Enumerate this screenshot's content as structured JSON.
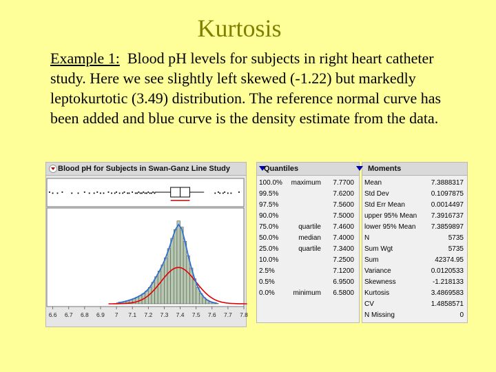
{
  "slide": {
    "title": "Kurtosis",
    "lead": "Example 1:",
    "text": "Blood pH levels for subjects in right heart catheter study. Here we see slightly left skewed (-1.22) but markedly leptokurtotic (3.49) distribution. The reference normal curve has been added and blue curve is the density estimate from the data."
  },
  "plot_panel": {
    "title": "Blood pH for Subjects in Swan-Ganz Line Study",
    "x_ticks": [
      "6.6",
      "6.7",
      "6.8",
      "6.9",
      "7",
      "7.1",
      "7.2",
      "7.3",
      "7.4",
      "7.5",
      "7.6",
      "7.7",
      "7.8"
    ]
  },
  "quantiles": {
    "title": "Quantiles",
    "rows": [
      {
        "pct": "100.0%",
        "label": "maximum",
        "value": "7.7700"
      },
      {
        "pct": "99.5%",
        "label": "",
        "value": "7.6200"
      },
      {
        "pct": "97.5%",
        "label": "",
        "value": "7.5600"
      },
      {
        "pct": "90.0%",
        "label": "",
        "value": "7.5000"
      },
      {
        "pct": "75.0%",
        "label": "quartile",
        "value": "7.4600"
      },
      {
        "pct": "50.0%",
        "label": "median",
        "value": "7.4000"
      },
      {
        "pct": "25.0%",
        "label": "quartile",
        "value": "7.3400"
      },
      {
        "pct": "10.0%",
        "label": "",
        "value": "7.2500"
      },
      {
        "pct": "2.5%",
        "label": "",
        "value": "7.1200"
      },
      {
        "pct": "0.5%",
        "label": "",
        "value": "6.9500"
      },
      {
        "pct": "0.0%",
        "label": "minimum",
        "value": "6.5800"
      }
    ]
  },
  "moments": {
    "title": "Moments",
    "rows": [
      {
        "label": "Mean",
        "value": "7.3888317"
      },
      {
        "label": "Std Dev",
        "value": "0.1097875"
      },
      {
        "label": "Std Err Mean",
        "value": "0.0014497"
      },
      {
        "label": "upper 95% Mean",
        "value": "7.3916737"
      },
      {
        "label": "lower 95% Mean",
        "value": "7.3859897"
      },
      {
        "label": "N",
        "value": "5735"
      },
      {
        "label": "Sum Wgt",
        "value": "5735"
      },
      {
        "label": "Sum",
        "value": "42374.95"
      },
      {
        "label": "Variance",
        "value": "0.0120533"
      },
      {
        "label": "Skewness",
        "value": "-1.218133"
      },
      {
        "label": "Kurtosis",
        "value": "3.4869583"
      },
      {
        "label": "CV",
        "value": "1.4858571"
      },
      {
        "label": "N Missing",
        "value": "0"
      }
    ]
  },
  "chart_data": {
    "type": "bar",
    "xlim": [
      6.58,
      7.8
    ],
    "bin_width": 0.02,
    "bins_x": [
      7.0,
      7.02,
      7.04,
      7.06,
      7.08,
      7.1,
      7.12,
      7.14,
      7.16,
      7.18,
      7.2,
      7.22,
      7.24,
      7.26,
      7.28,
      7.3,
      7.32,
      7.34,
      7.36,
      7.38,
      7.4,
      7.42,
      7.44,
      7.46,
      7.48,
      7.5,
      7.52,
      7.54,
      7.56,
      7.58,
      7.6,
      7.62
    ],
    "values": [
      0.2,
      0.3,
      0.4,
      0.6,
      0.8,
      1.0,
      1.3,
      1.6,
      2.0,
      2.5,
      3.2,
      4.2,
      5.3,
      6.4,
      7.6,
      9.0,
      10.8,
      12.8,
      14.5,
      16.2,
      15.0,
      12.2,
      9.4,
      7.0,
      4.9,
      3.2,
      2.0,
      1.2,
      0.7,
      0.4,
      0.2,
      0.1
    ],
    "normal_curve": {
      "mean": 7.3888317,
      "sd": 0.1097875,
      "color": "#e00000"
    },
    "density_color": "#2f6fd0",
    "bar_color": "#b7c8b0",
    "box_color": "#c00000",
    "box_plot": {
      "min": 6.58,
      "q1": 7.34,
      "median": 7.4,
      "q3": 7.46,
      "max": 7.77
    }
  }
}
